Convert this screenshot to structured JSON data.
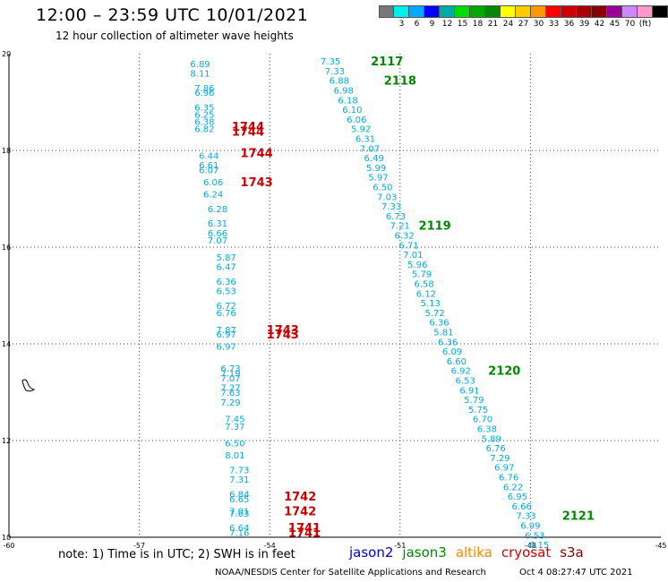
{
  "title": "12:00 – 23:59 UTC 10/01/2021",
  "subtitle": "12 hour collection of altimeter wave heights",
  "footnote": "note:  1) Time is in UTC;  2) SWH is in feet",
  "credit": "NOAA/NESDIS Center for Satellite Applications and Research",
  "timestamp": "Oct  4 08:27:47 UTC 2021",
  "satellites": [
    {
      "name": "jason2",
      "color": "#0000cc"
    },
    {
      "name": "jason3",
      "color": "#008800"
    },
    {
      "name": "altika",
      "color": "#ff8800"
    },
    {
      "name": "cryosat",
      "color": "#cc0000"
    },
    {
      "name": "s3a",
      "color": "#880000"
    }
  ],
  "colorscale": {
    "colors": [
      "#777777",
      "#00eeee",
      "#00aaff",
      "#0000ff",
      "#00aaaa",
      "#00dd00",
      "#00aa00",
      "#008800",
      "#ffff00",
      "#ffcc00",
      "#ff9900",
      "#ff0000",
      "#cc0000",
      "#aa0000",
      "#880000",
      "#990099",
      "#cc88ff",
      "#ff99cc",
      "#000000"
    ],
    "labels": [
      "",
      "3",
      "6",
      "9",
      "12",
      "15",
      "18",
      "21",
      "24",
      "27",
      "30",
      "33",
      "36",
      "39",
      "42",
      "45",
      "70",
      "(ft)",
      ""
    ]
  },
  "chart_data": {
    "type": "scatter",
    "xlim": [
      -60,
      -45
    ],
    "ylim": [
      10,
      20
    ],
    "xticks": [
      -60,
      -57,
      -54,
      -51,
      -48,
      -45
    ],
    "yticks": [
      10,
      12,
      14,
      16,
      18,
      20
    ],
    "series": [
      {
        "name": "cryosat",
        "color": "#00aadd",
        "points": [
          {
            "lon": -55.6,
            "lat": 19.8,
            "v": "6.89"
          },
          {
            "lon": -55.6,
            "lat": 19.6,
            "v": "8.11"
          },
          {
            "lon": -55.5,
            "lat": 19.3,
            "v": "7.86"
          },
          {
            "lon": -55.5,
            "lat": 19.2,
            "v": "6.96"
          },
          {
            "lon": -55.5,
            "lat": 18.9,
            "v": "6.35"
          },
          {
            "lon": -55.5,
            "lat": 18.75,
            "v": "6.25"
          },
          {
            "lon": -55.5,
            "lat": 18.6,
            "v": "6.38"
          },
          {
            "lon": -55.5,
            "lat": 18.45,
            "v": "6.82"
          },
          {
            "lon": -55.4,
            "lat": 17.9,
            "v": "6.44"
          },
          {
            "lon": -55.4,
            "lat": 17.7,
            "v": "6.61"
          },
          {
            "lon": -55.4,
            "lat": 17.6,
            "v": "6.07"
          },
          {
            "lon": -55.3,
            "lat": 17.35,
            "v": "6.06"
          },
          {
            "lon": -55.3,
            "lat": 17.1,
            "v": "6.24"
          },
          {
            "lon": -55.2,
            "lat": 16.8,
            "v": "6.28"
          },
          {
            "lon": -55.2,
            "lat": 16.5,
            "v": "6.31"
          },
          {
            "lon": -55.2,
            "lat": 16.3,
            "v": "6.66"
          },
          {
            "lon": -55.2,
            "lat": 16.15,
            "v": "7.07"
          },
          {
            "lon": -55.0,
            "lat": 15.8,
            "v": "5.87"
          },
          {
            "lon": -55.0,
            "lat": 15.6,
            "v": "6.47"
          },
          {
            "lon": -55.0,
            "lat": 15.3,
            "v": "6.36"
          },
          {
            "lon": -55.0,
            "lat": 15.1,
            "v": "6.53"
          },
          {
            "lon": -55.0,
            "lat": 14.8,
            "v": "6.72"
          },
          {
            "lon": -55.0,
            "lat": 14.65,
            "v": "6.76"
          },
          {
            "lon": -55.0,
            "lat": 14.3,
            "v": "7.87"
          },
          {
            "lon": -55.0,
            "lat": 14.2,
            "v": "6.97"
          },
          {
            "lon": -55.0,
            "lat": 13.95,
            "v": "6.97"
          },
          {
            "lon": -54.9,
            "lat": 13.5,
            "v": "6.73"
          },
          {
            "lon": -54.9,
            "lat": 13.4,
            "v": "7.19"
          },
          {
            "lon": -54.9,
            "lat": 13.3,
            "v": "7.07"
          },
          {
            "lon": -54.9,
            "lat": 13.1,
            "v": "7.27"
          },
          {
            "lon": -54.9,
            "lat": 13.0,
            "v": "7.63"
          },
          {
            "lon": -54.9,
            "lat": 12.8,
            "v": "7.29"
          },
          {
            "lon": -54.8,
            "lat": 12.45,
            "v": "7.45"
          },
          {
            "lon": -54.8,
            "lat": 12.3,
            "v": "7.37"
          },
          {
            "lon": -54.8,
            "lat": 11.95,
            "v": "6.50"
          },
          {
            "lon": -54.8,
            "lat": 11.7,
            "v": "8.01"
          },
          {
            "lon": -54.7,
            "lat": 11.4,
            "v": "7.73"
          },
          {
            "lon": -54.7,
            "lat": 11.2,
            "v": "7.31"
          },
          {
            "lon": -54.7,
            "lat": 10.9,
            "v": "6.84"
          },
          {
            "lon": -54.7,
            "lat": 10.8,
            "v": "6.65"
          },
          {
            "lon": -54.7,
            "lat": 10.55,
            "v": "7.01"
          },
          {
            "lon": -54.7,
            "lat": 10.5,
            "v": "7.63"
          },
          {
            "lon": -54.7,
            "lat": 10.2,
            "v": "6.64"
          },
          {
            "lon": -54.7,
            "lat": 10.1,
            "v": "7.16"
          }
        ],
        "passes": [
          {
            "lon": -54.5,
            "lat": 18.5,
            "v": "1744"
          },
          {
            "lon": -54.5,
            "lat": 18.4,
            "v": "1744"
          },
          {
            "lon": -54.3,
            "lat": 17.95,
            "v": "1744"
          },
          {
            "lon": -54.3,
            "lat": 17.35,
            "v": "1743"
          },
          {
            "lon": -53.7,
            "lat": 14.3,
            "v": "1743"
          },
          {
            "lon": -53.7,
            "lat": 14.2,
            "v": "1743"
          },
          {
            "lon": -53.3,
            "lat": 10.85,
            "v": "1742"
          },
          {
            "lon": -53.3,
            "lat": 10.55,
            "v": "1742"
          },
          {
            "lon": -53.2,
            "lat": 10.2,
            "v": "1741"
          },
          {
            "lon": -53.2,
            "lat": 10.1,
            "v": "1741"
          }
        ]
      },
      {
        "name": "jason3",
        "color": "#00aadd",
        "points": [
          {
            "lon": -52.6,
            "lat": 19.85,
            "v": "7.35"
          },
          {
            "lon": -52.5,
            "lat": 19.65,
            "v": "7.33"
          },
          {
            "lon": -52.4,
            "lat": 19.45,
            "v": "6.88"
          },
          {
            "lon": -52.3,
            "lat": 19.25,
            "v": "6.98"
          },
          {
            "lon": -52.2,
            "lat": 19.05,
            "v": "6.18"
          },
          {
            "lon": -52.1,
            "lat": 18.85,
            "v": "6.10"
          },
          {
            "lon": -52.0,
            "lat": 18.65,
            "v": "6.06"
          },
          {
            "lon": -51.9,
            "lat": 18.45,
            "v": "5.92"
          },
          {
            "lon": -51.8,
            "lat": 18.25,
            "v": "6.31"
          },
          {
            "lon": -51.7,
            "lat": 18.05,
            "v": "7.07"
          },
          {
            "lon": -51.6,
            "lat": 17.85,
            "v": "6.49"
          },
          {
            "lon": -51.55,
            "lat": 17.65,
            "v": "5.99"
          },
          {
            "lon": -51.5,
            "lat": 17.45,
            "v": "5.97"
          },
          {
            "lon": -51.4,
            "lat": 17.25,
            "v": "6.50"
          },
          {
            "lon": -51.3,
            "lat": 17.05,
            "v": "7.03"
          },
          {
            "lon": -51.2,
            "lat": 16.85,
            "v": "7.33"
          },
          {
            "lon": -51.1,
            "lat": 16.65,
            "v": "6.73"
          },
          {
            "lon": -51.0,
            "lat": 16.45,
            "v": "7.21"
          },
          {
            "lon": -50.9,
            "lat": 16.25,
            "v": "6.32"
          },
          {
            "lon": -50.8,
            "lat": 16.05,
            "v": "6.71"
          },
          {
            "lon": -50.7,
            "lat": 15.85,
            "v": "7.01"
          },
          {
            "lon": -50.6,
            "lat": 15.65,
            "v": "5.96"
          },
          {
            "lon": -50.5,
            "lat": 15.45,
            "v": "5.79"
          },
          {
            "lon": -50.45,
            "lat": 15.25,
            "v": "6.58"
          },
          {
            "lon": -50.4,
            "lat": 15.05,
            "v": "6.12"
          },
          {
            "lon": -50.3,
            "lat": 14.85,
            "v": "5.13"
          },
          {
            "lon": -50.2,
            "lat": 14.65,
            "v": "5.72"
          },
          {
            "lon": -50.1,
            "lat": 14.45,
            "v": "6.36"
          },
          {
            "lon": -50.0,
            "lat": 14.25,
            "v": "5.81"
          },
          {
            "lon": -49.9,
            "lat": 14.05,
            "v": "6.36"
          },
          {
            "lon": -49.8,
            "lat": 13.85,
            "v": "6.09"
          },
          {
            "lon": -49.7,
            "lat": 13.65,
            "v": "6.60"
          },
          {
            "lon": -49.6,
            "lat": 13.45,
            "v": "6.92"
          },
          {
            "lon": -49.5,
            "lat": 13.25,
            "v": "6.53"
          },
          {
            "lon": -49.4,
            "lat": 13.05,
            "v": "6.91"
          },
          {
            "lon": -49.3,
            "lat": 12.85,
            "v": "5.79"
          },
          {
            "lon": -49.2,
            "lat": 12.65,
            "v": "5.75"
          },
          {
            "lon": -49.1,
            "lat": 12.45,
            "v": "6.70"
          },
          {
            "lon": -49.0,
            "lat": 12.25,
            "v": "6.38"
          },
          {
            "lon": -48.9,
            "lat": 12.05,
            "v": "5.89"
          },
          {
            "lon": -48.8,
            "lat": 11.85,
            "v": "6.76"
          },
          {
            "lon": -48.7,
            "lat": 11.65,
            "v": "7.29"
          },
          {
            "lon": -48.6,
            "lat": 11.45,
            "v": "6.97"
          },
          {
            "lon": -48.5,
            "lat": 11.25,
            "v": "6.76"
          },
          {
            "lon": -48.4,
            "lat": 11.05,
            "v": "6.22"
          },
          {
            "lon": -48.3,
            "lat": 10.85,
            "v": "6.95"
          },
          {
            "lon": -48.2,
            "lat": 10.65,
            "v": "6.66"
          },
          {
            "lon": -48.1,
            "lat": 10.45,
            "v": "7.33"
          },
          {
            "lon": -48.0,
            "lat": 10.25,
            "v": "6.99"
          },
          {
            "lon": -47.9,
            "lat": 10.05,
            "v": "6.53"
          },
          {
            "lon": -47.8,
            "lat": 9.85,
            "v": "6.15"
          }
        ],
        "passes": [
          {
            "lon": -51.3,
            "lat": 19.85,
            "v": "2117"
          },
          {
            "lon": -51.0,
            "lat": 19.45,
            "v": "2118"
          },
          {
            "lon": -50.2,
            "lat": 16.45,
            "v": "2119"
          },
          {
            "lon": -48.6,
            "lat": 13.45,
            "v": "2120"
          },
          {
            "lon": -46.9,
            "lat": 10.45,
            "v": "2121"
          }
        ]
      }
    ]
  }
}
